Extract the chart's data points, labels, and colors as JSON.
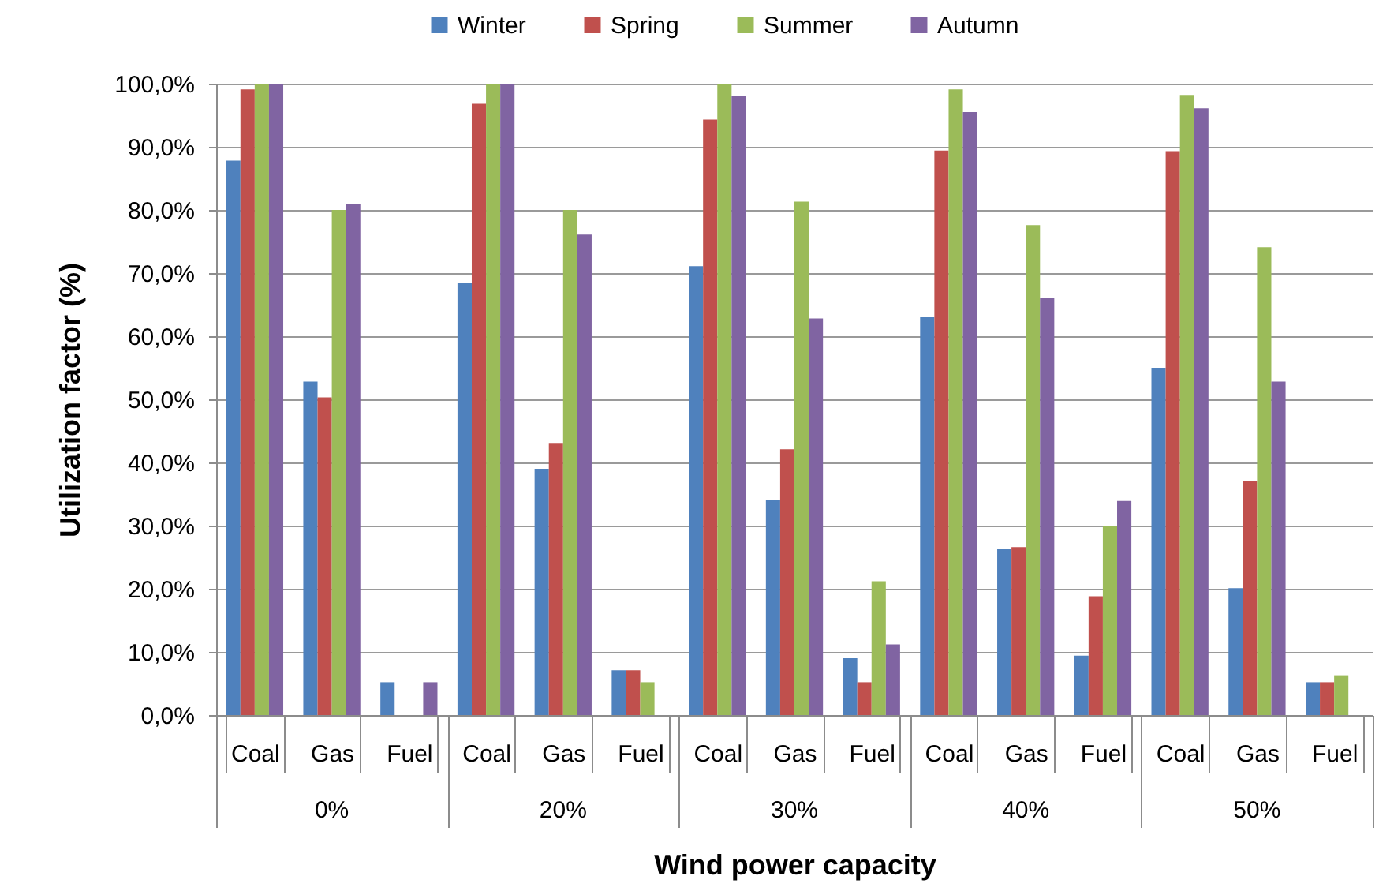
{
  "chart_data": {
    "type": "bar",
    "xlabel": "Wind power  capacity",
    "ylabel": "Utilization factor (%)",
    "categories": [
      "Coal",
      "Gas",
      "Fuel",
      "Coal",
      "Gas",
      "Fuel",
      "Coal",
      "Gas",
      "Fuel",
      "Coal",
      "Gas",
      "Fuel",
      "Coal",
      "Gas",
      "Fuel"
    ],
    "annotations": [
      "0%",
      "20%",
      "30%",
      "40%",
      "50%"
    ],
    "series": [
      {
        "name": "Winter",
        "color": "#4f81bd",
        "values": [
          87.8,
          52.8,
          5.2,
          68.5,
          39.0,
          7.1,
          71.1,
          34.1,
          9.0,
          63.0,
          26.3,
          9.4,
          55.0,
          20.1,
          5.2
        ]
      },
      {
        "name": "Spring",
        "color": "#c0504d",
        "values": [
          99.1,
          50.3,
          null,
          96.8,
          43.1,
          7.1,
          94.3,
          42.1,
          5.2,
          89.4,
          26.6,
          18.8,
          89.3,
          37.1,
          5.2
        ]
      },
      {
        "name": "Summer",
        "color": "#9bbb59",
        "values": [
          100,
          80.0,
          null,
          100,
          80.0,
          5.2,
          100,
          81.3,
          21.2,
          99.1,
          77.6,
          30.0,
          98.1,
          74.1,
          6.3
        ]
      },
      {
        "name": "Autumn",
        "color": "#8064a2",
        "values": [
          100,
          80.9,
          5.2,
          100,
          76.1,
          null,
          98.0,
          62.8,
          11.2,
          95.5,
          66.1,
          33.9,
          96.1,
          52.8,
          null
        ]
      }
    ],
    "ylim": [
      0,
      100
    ],
    "yticks": [
      {
        "value": 0,
        "label": "0,0%"
      },
      {
        "value": 10,
        "label": "10,0%"
      },
      {
        "value": 20,
        "label": "20,0%"
      },
      {
        "value": 30,
        "label": "30,0%"
      },
      {
        "value": 40,
        "label": "40,0%"
      },
      {
        "value": 50,
        "label": "50,0%"
      },
      {
        "value": 60,
        "label": "60,0%"
      },
      {
        "value": 70,
        "label": "70,0%"
      },
      {
        "value": 80,
        "label": "80,0%"
      },
      {
        "value": 90,
        "label": "90,0%"
      },
      {
        "value": 100,
        "label": "100,0%"
      }
    ],
    "grid": "y",
    "legend": "top"
  }
}
